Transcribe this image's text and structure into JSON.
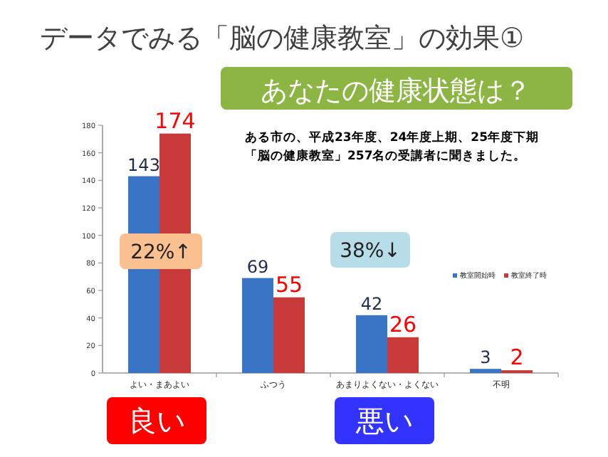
{
  "chart_data": {
    "type": "bar",
    "title": "データでみる「脳の健康教室」の効果①",
    "subtitle": "あなたの健康状態は？",
    "categories": [
      "よい・まあよい",
      "ふつう",
      "あまりよくない・よくない",
      "不明"
    ],
    "series": [
      {
        "name": "教室開始時",
        "color": "#3a74c4",
        "values": [
          143,
          69,
          42,
          3
        ]
      },
      {
        "name": "教室終了時",
        "color": "#c83a3a",
        "values": [
          174,
          55,
          26,
          2
        ]
      }
    ],
    "ylim": [
      0,
      180
    ],
    "yticks": [
      0,
      20,
      40,
      60,
      80,
      100,
      120,
      140,
      160,
      180
    ],
    "grid": false,
    "legend": "right",
    "data_labels": true,
    "annotations": [
      "ある市の、平成23年度、24年度上期、25年度下期",
      "「脳の健康教室」257名の受講者に聞きました。",
      "22%↑",
      "38%↓",
      "良い",
      "悪い"
    ]
  }
}
